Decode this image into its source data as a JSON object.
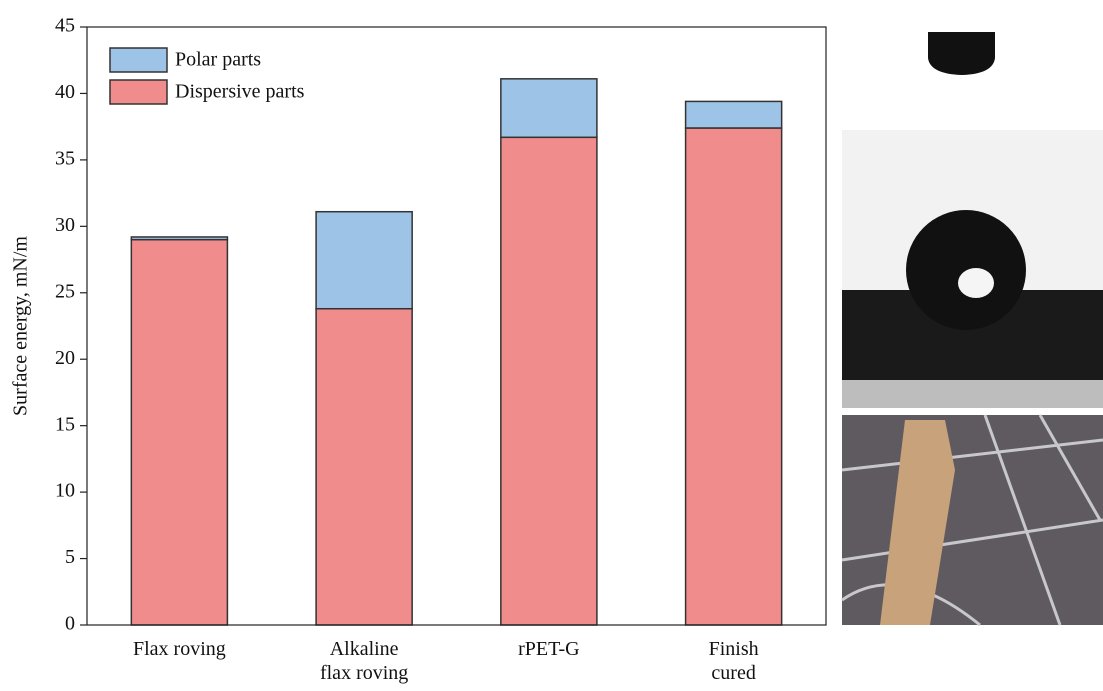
{
  "chart_data": {
    "type": "stacked_bar",
    "y_label": "Surface energy, mN/m",
    "categories": [
      "Flax roving",
      "Alkaline\nflax roving",
      "rPET-G",
      "Finish\ncured"
    ],
    "series": [
      {
        "name": "Dispersive parts",
        "color": "#f08c8c",
        "values": [
          29.0,
          23.8,
          36.7,
          37.4
        ]
      },
      {
        "name": "Polar parts",
        "color": "#9dc3e6",
        "values": [
          0.2,
          7.3,
          4.4,
          2.0
        ]
      }
    ],
    "ylim": [
      0,
      45
    ],
    "yticks": [
      0,
      5,
      10,
      15,
      20,
      25,
      30,
      35,
      40,
      45
    ],
    "legend": "upper-left"
  }
}
